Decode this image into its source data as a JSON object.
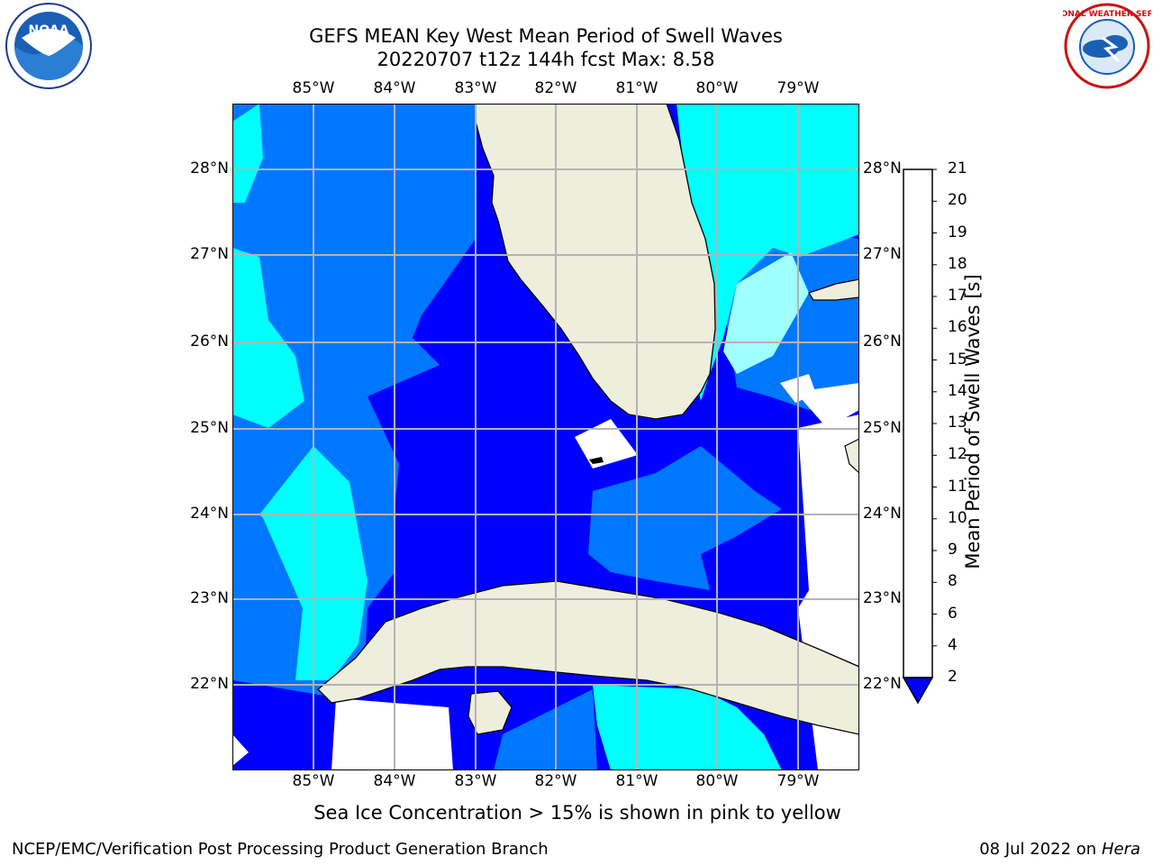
{
  "title": {
    "line1": "GEFS MEAN Key West Mean Period of Swell Waves",
    "line2": "20220707 t12z 144h fcst   Max: 8.58"
  },
  "map": {
    "lon_labels": [
      "85°W",
      "84°W",
      "83°W",
      "82°W",
      "81°W",
      "80°W",
      "79°W"
    ],
    "lat_labels": [
      "28°N",
      "27°N",
      "26°N",
      "25°N",
      "24°N",
      "23°N",
      "22°N"
    ],
    "colors": {
      "land": "#eeeedd",
      "ocean_lines": "#b3b3b3",
      "undefined": "#ffffff"
    }
  },
  "colorbar": {
    "label": "Mean Period of Swell Waves [s]",
    "ticks": [
      "2",
      "4",
      "6",
      "8",
      "9",
      "10",
      "11",
      "12",
      "13",
      "14",
      "15",
      "16",
      "17",
      "18",
      "19",
      "20",
      "21"
    ],
    "colors": [
      "#0000ff",
      "#0077ff",
      "#00ffff",
      "#44ffff",
      "#a0ffff",
      "#55ff88",
      "#00ee00",
      "#22dd00",
      "#66ee00",
      "#aadd00",
      "#ccee00",
      "#ffff00",
      "#ffdd00",
      "#ffbb00",
      "#ff8800",
      "#ff6600",
      "#ff3300",
      "#ff0000"
    ]
  },
  "note": "Sea Ice Concentration > 15% is shown in pink to yellow",
  "footer": {
    "left": "NCEP/EMC/Verification Post Processing Product Generation Branch",
    "date": "08 Jul 2022 on ",
    "host": "Hera"
  },
  "logos": {
    "noaa_text": "NOAA",
    "nws_text": "NATIONAL WEATHER SERVICE"
  }
}
